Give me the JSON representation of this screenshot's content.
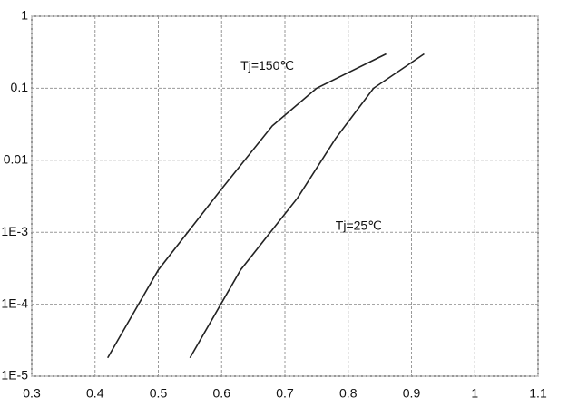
{
  "chart_data": {
    "type": "line",
    "log_y": true,
    "grid": true,
    "series": [
      {
        "color": "#222222",
        "x": [
          0.42,
          0.5,
          0.6,
          0.68,
          0.75,
          0.86
        ],
        "values": [
          1.8e-05,
          0.0003,
          0.004,
          0.03,
          0.1,
          0.3
        ]
      },
      {
        "color": "#222222",
        "x": [
          0.55,
          0.63,
          0.72,
          0.78,
          0.84,
          0.92
        ],
        "values": [
          1.8e-05,
          0.0003,
          0.003,
          0.02,
          0.1,
          0.3
        ]
      }
    ],
    "annotations": [
      {
        "text": "Tj=150℃",
        "x": 0.63,
        "y": 0.2
      },
      {
        "text": "Tj=25℃",
        "x": 0.78,
        "y": 0.0012
      }
    ],
    "xlim": [
      0.3,
      1.1
    ],
    "xticks": [
      0.3,
      0.4,
      0.5,
      0.6,
      0.7,
      0.8,
      0.9,
      1.0,
      1.1
    ],
    "ylim": [
      1e-05,
      1
    ],
    "yticks": [
      1,
      0.1,
      0.01,
      {
        "value": 0.001,
        "label": "1E-3"
      },
      {
        "value": 0.0001,
        "label": "1E-4"
      },
      {
        "value": 1e-05,
        "label": "1E-5"
      }
    ]
  }
}
